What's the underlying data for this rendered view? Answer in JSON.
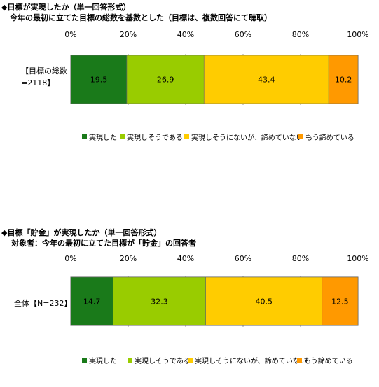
{
  "chart_data": [
    {
      "type": "bar",
      "orientation": "horizontal-stacked-100",
      "title": "◆目標が実現したか（単一回答形式）",
      "subtitle": "今年の最初に立てた目標の総数を基数とした（目標は、複数回答にて聴取）",
      "xlim": [
        0,
        100
      ],
      "ticks": [
        "0%",
        "20%",
        "40%",
        "60%",
        "80%",
        "100%"
      ],
      "category_label_lines": [
        "【目標の総数",
        "=2118】"
      ],
      "legend_position": "bottom",
      "series": [
        {
          "name": "実現した",
          "value": 19.5,
          "color": "#1a7a1a",
          "label": "19.5"
        },
        {
          "name": "実現しそうである",
          "value": 26.9,
          "color": "#99cc00",
          "label": "26.9"
        },
        {
          "name": "実現しそうにないが、諦めていない",
          "value": 43.4,
          "color": "#ffcc00",
          "label": "43.4"
        },
        {
          "name": "もう諦めている",
          "value": 10.2,
          "color": "#ff9900",
          "label": "10.2"
        }
      ]
    },
    {
      "type": "bar",
      "orientation": "horizontal-stacked-100",
      "title": "◆目標「貯金」が実現したか（単一回答形式）",
      "subtitle": "対象者：今年の最初に立てた目標が「貯金」の回答者",
      "xlim": [
        0,
        100
      ],
      "ticks": [
        "0%",
        "20%",
        "40%",
        "60%",
        "80%",
        "100%"
      ],
      "category_label_lines": [
        "全体【N=232】"
      ],
      "legend_position": "bottom",
      "series": [
        {
          "name": "実現した",
          "value": 14.7,
          "color": "#1a7a1a",
          "label": "14.7"
        },
        {
          "name": "実現しそうである",
          "value": 32.3,
          "color": "#99cc00",
          "label": "32.3"
        },
        {
          "name": "実現しそうにないが、諦めていない",
          "value": 40.5,
          "color": "#ffcc00",
          "label": "40.5"
        },
        {
          "name": "もう諦めている",
          "value": 12.5,
          "color": "#ff9900",
          "label": "12.5"
        }
      ]
    }
  ]
}
